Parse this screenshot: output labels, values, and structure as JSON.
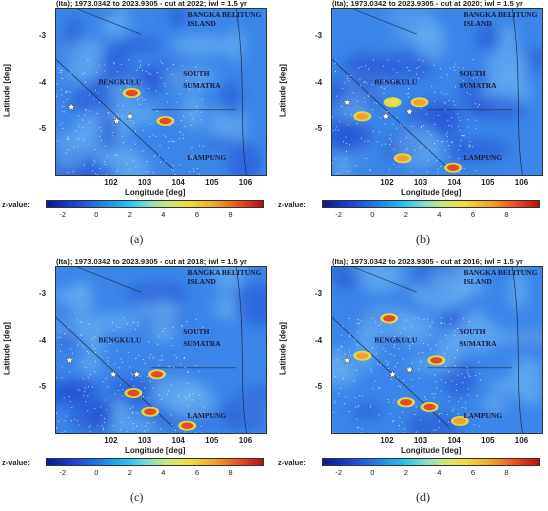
{
  "figure": {
    "colorbar_gradient": [
      "#0a1a8c",
      "#1c3fd6",
      "#1e8be6",
      "#29c3f0",
      "#7fe0c8",
      "#cfe676",
      "#f0de3a",
      "#f3a12a",
      "#e8481d",
      "#b80e0e"
    ],
    "map_background": "#3b86e8",
    "hotspot_color": "#d81e16"
  },
  "chart_data": [
    {
      "type": "heatmap",
      "title": "(Ita); 1973.0342 to 2023.9305 - cut at 2022; iwl = 1.5 yr",
      "xlabel": "Longitude [deg]",
      "ylabel": "Latitude [deg]",
      "xlim": [
        100.3,
        106.6
      ],
      "ylim": [
        -6.0,
        -2.4
      ],
      "xticks": [
        "102",
        "103",
        "104",
        "105",
        "106"
      ],
      "yticks": [
        "-3",
        "-4",
        "-5"
      ],
      "colorbar": {
        "label": "z-value:",
        "min": -3,
        "max": 10,
        "ticks": [
          "-2",
          "0",
          "2",
          "4",
          "6",
          "8"
        ]
      },
      "regions": [
        "BANGKA BELITUNG ISLAND",
        "BENGKULU",
        "SOUTH SUMATRA",
        "LAMPUNG"
      ],
      "caption": "(a)",
      "hotspots": [
        {
          "lon": 102.55,
          "lat": -4.2,
          "z": 9
        },
        {
          "lon": 103.55,
          "lat": -4.8,
          "z": 9
        }
      ],
      "stars": [
        {
          "lon": 100.75,
          "lat": -4.5
        },
        {
          "lon": 102.1,
          "lat": -4.8
        },
        {
          "lon": 102.5,
          "lat": -4.7
        }
      ]
    },
    {
      "type": "heatmap",
      "title": "(Ita); 1973.0342 to 2023.9305 - cut at 2020; iwl = 1.5 yr",
      "xlabel": "Longitude [deg]",
      "ylabel": "Latitude [deg]",
      "xlim": [
        100.3,
        106.6
      ],
      "ylim": [
        -6.0,
        -2.4
      ],
      "xticks": [
        "102",
        "103",
        "104",
        "105",
        "106"
      ],
      "yticks": [
        "-3",
        "-4",
        "-5"
      ],
      "colorbar": {
        "label": "z-value:",
        "min": -3,
        "max": 10,
        "ticks": [
          "-2",
          "0",
          "2",
          "4",
          "6",
          "8"
        ]
      },
      "regions": [
        "BANGKA BELITUNG ISLAND",
        "BENGKULU",
        "SOUTH SUMATRA",
        "LAMPUNG"
      ],
      "caption": "(b)",
      "hotspots": [
        {
          "lon": 101.2,
          "lat": -4.7,
          "z": 7
        },
        {
          "lon": 102.9,
          "lat": -4.4,
          "z": 7
        },
        {
          "lon": 102.4,
          "lat": -5.6,
          "z": 7
        },
        {
          "lon": 103.9,
          "lat": -5.8,
          "z": 9
        },
        {
          "lon": 102.1,
          "lat": -4.4,
          "z": 6
        }
      ],
      "stars": [
        {
          "lon": 100.75,
          "lat": -4.4
        },
        {
          "lon": 101.9,
          "lat": -4.7
        },
        {
          "lon": 102.6,
          "lat": -4.6
        }
      ]
    },
    {
      "type": "heatmap",
      "title": "(Ita); 1973.0342 to 2023.9305 - cut at 2018; iwl = 1.5 yr",
      "xlabel": "Longitude [deg]",
      "ylabel": "Latitude [deg]",
      "xlim": [
        100.3,
        106.6
      ],
      "ylim": [
        -6.0,
        -2.4
      ],
      "xticks": [
        "102",
        "103",
        "104",
        "105",
        "106"
      ],
      "yticks": [
        "-3",
        "-4",
        "-5"
      ],
      "colorbar": {
        "label": "z-value:",
        "min": -3,
        "max": 10,
        "ticks": [
          "-2",
          "0",
          "2",
          "4",
          "6",
          "8"
        ]
      },
      "regions": [
        "BANGKA BELITUNG ISLAND",
        "BENGKULU",
        "SOUTH SUMATRA",
        "LAMPUNG"
      ],
      "caption": "(c)",
      "hotspots": [
        {
          "lon": 103.3,
          "lat": -4.7,
          "z": 9
        },
        {
          "lon": 102.6,
          "lat": -5.1,
          "z": 8
        },
        {
          "lon": 103.1,
          "lat": -5.5,
          "z": 9
        },
        {
          "lon": 104.2,
          "lat": -5.8,
          "z": 9
        }
      ],
      "stars": [
        {
          "lon": 100.7,
          "lat": -4.4
        },
        {
          "lon": 102.0,
          "lat": -4.7
        },
        {
          "lon": 102.7,
          "lat": -4.7
        }
      ]
    },
    {
      "type": "heatmap",
      "title": "(Ita); 1973.0342 to 2023.9305 - cut at 2016; iwl = 1.5 yr",
      "xlabel": "Longitude [deg]",
      "ylabel": "Latitude [deg]",
      "xlim": [
        100.3,
        106.6
      ],
      "ylim": [
        -6.0,
        -2.4
      ],
      "xticks": [
        "102",
        "103",
        "104",
        "105",
        "106"
      ],
      "yticks": [
        "-3",
        "-4",
        "-5"
      ],
      "colorbar": {
        "label": "z-value:",
        "min": -3,
        "max": 10,
        "ticks": [
          "-2",
          "0",
          "2",
          "4",
          "6",
          "8"
        ]
      },
      "regions": [
        "BANGKA BELITUNG ISLAND",
        "BENGKULU",
        "SOUTH SUMATRA",
        "LAMPUNG"
      ],
      "caption": "(d)",
      "hotspots": [
        {
          "lon": 102.0,
          "lat": -3.5,
          "z": 8
        },
        {
          "lon": 103.4,
          "lat": -4.4,
          "z": 9
        },
        {
          "lon": 102.5,
          "lat": -5.3,
          "z": 8
        },
        {
          "lon": 103.2,
          "lat": -5.4,
          "z": 8
        },
        {
          "lon": 101.2,
          "lat": -4.3,
          "z": 7
        },
        {
          "lon": 104.1,
          "lat": -5.7,
          "z": 7
        }
      ],
      "stars": [
        {
          "lon": 100.75,
          "lat": -4.4
        },
        {
          "lon": 102.1,
          "lat": -4.7
        },
        {
          "lon": 102.6,
          "lat": -4.6
        }
      ]
    }
  ]
}
